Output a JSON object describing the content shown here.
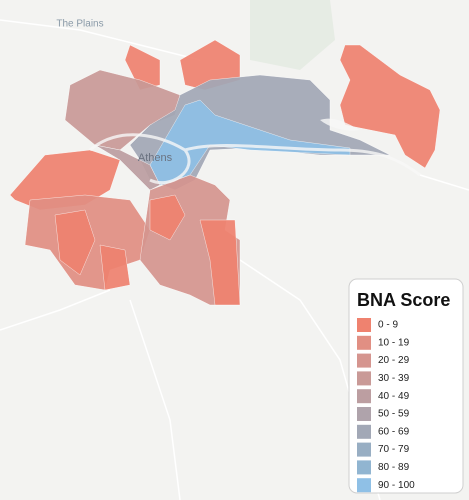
{
  "labels": {
    "town": "The Plains",
    "city": "Athens"
  },
  "legend": {
    "title": "BNA Score",
    "items": [
      {
        "label": "0 - 9",
        "color": "#ef826f"
      },
      {
        "label": "10 - 19",
        "color": "#e18f83"
      },
      {
        "label": "20 - 29",
        "color": "#d5958f"
      },
      {
        "label": "30 - 39",
        "color": "#c99a97"
      },
      {
        "label": "40 - 49",
        "color": "#bc9ea1"
      },
      {
        "label": "50 - 59",
        "color": "#afa3ab"
      },
      {
        "label": "60 - 69",
        "color": "#a2a8b6"
      },
      {
        "label": "70 - 79",
        "color": "#98aec3"
      },
      {
        "label": "80 - 89",
        "color": "#91b5d1"
      },
      {
        "label": "90 - 100",
        "color": "#8fc0e6"
      }
    ]
  }
}
